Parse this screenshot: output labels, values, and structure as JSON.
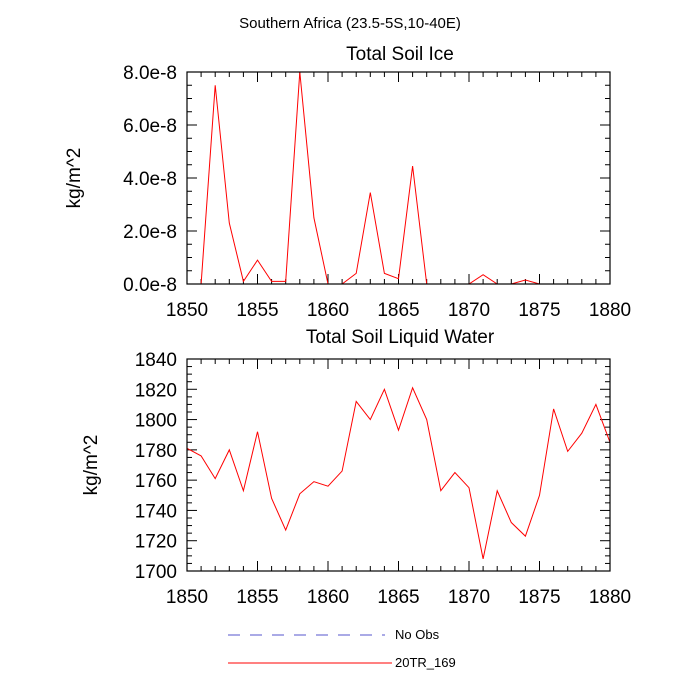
{
  "figure_title": "Southern Africa (23.5-5S,10-40E)",
  "chart_data": [
    {
      "type": "line",
      "title": "Total Soil Ice",
      "xlabel": "",
      "ylabel": "kg/m^2",
      "xlim": [
        1850,
        1880
      ],
      "ylim": [
        0,
        8e-08
      ],
      "x_ticks": [
        1850,
        1855,
        1860,
        1865,
        1870,
        1875,
        1880
      ],
      "x_tick_labels": [
        "1850",
        "1855",
        "1860",
        "1865",
        "1870",
        "1875",
        "1880"
      ],
      "y_ticks": [
        0,
        2e-08,
        4e-08,
        6e-08,
        8e-08
      ],
      "y_tick_labels": [
        "0.0e-8",
        "2.0e-8",
        "4.0e-8",
        "6.0e-8",
        "8.0e-8"
      ],
      "grid": false,
      "series": [
        {
          "name": "20TR_169",
          "color": "#ff0000",
          "x": [
            1850,
            1851,
            1852,
            1853,
            1854,
            1855,
            1856,
            1857,
            1858,
            1859,
            1860,
            1861,
            1862,
            1863,
            1864,
            1865,
            1866,
            1867,
            1868,
            1869,
            1870,
            1871,
            1872,
            1873,
            1874,
            1875,
            1876,
            1877,
            1878,
            1879,
            1880
          ],
          "values": [
            0,
            0,
            7.5e-08,
            2.3e-08,
            1e-09,
            9e-09,
            1e-09,
            1e-09,
            8e-08,
            2.5e-08,
            0,
            0,
            4e-09,
            3.45e-08,
            4e-09,
            2e-09,
            4.45e-08,
            0,
            0,
            0,
            0,
            3.5e-09,
            0,
            0,
            1.5e-09,
            0,
            0,
            0,
            0,
            0,
            0
          ]
        }
      ]
    },
    {
      "type": "line",
      "title": "Total Soil Liquid Water",
      "xlabel": "",
      "ylabel": "kg/m^2",
      "xlim": [
        1850,
        1880
      ],
      "ylim": [
        1700,
        1840
      ],
      "x_ticks": [
        1850,
        1855,
        1860,
        1865,
        1870,
        1875,
        1880
      ],
      "x_tick_labels": [
        "1850",
        "1855",
        "1860",
        "1865",
        "1870",
        "1875",
        "1880"
      ],
      "y_ticks": [
        1700,
        1720,
        1740,
        1760,
        1780,
        1800,
        1820,
        1840
      ],
      "y_tick_labels": [
        "1700",
        "1720",
        "1740",
        "1760",
        "1780",
        "1800",
        "1820",
        "1840"
      ],
      "grid": false,
      "series": [
        {
          "name": "20TR_169",
          "color": "#ff0000",
          "x": [
            1850,
            1851,
            1852,
            1853,
            1854,
            1855,
            1856,
            1857,
            1858,
            1859,
            1860,
            1861,
            1862,
            1863,
            1864,
            1865,
            1866,
            1867,
            1868,
            1869,
            1870,
            1871,
            1872,
            1873,
            1874,
            1875,
            1876,
            1877,
            1878,
            1879,
            1880
          ],
          "values": [
            1781,
            1776,
            1761,
            1780,
            1753,
            1792,
            1748,
            1727,
            1751,
            1759,
            1756,
            1766,
            1812,
            1800,
            1820,
            1793,
            1821,
            1800,
            1753,
            1765,
            1755,
            1708,
            1753,
            1732,
            1723,
            1750,
            1807,
            1779,
            1791,
            1810,
            1785
          ]
        }
      ]
    }
  ],
  "legend": {
    "placement": "bottom",
    "items": [
      {
        "label": "No Obs",
        "color": "#5555cc",
        "style": "dashed"
      },
      {
        "label": "20TR_169",
        "color": "#ff0000",
        "style": "solid"
      }
    ]
  }
}
